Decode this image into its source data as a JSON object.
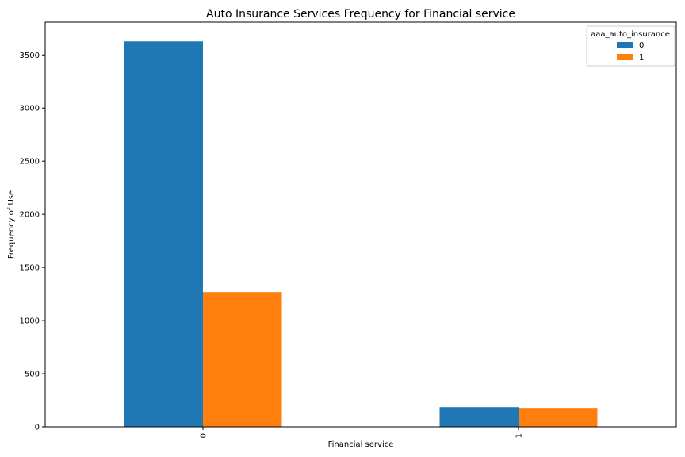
{
  "chart_data": {
    "type": "bar",
    "title": "Auto Insurance Services Frequency for Financial service",
    "xlabel": "Financial service",
    "ylabel": "Frequency of Use",
    "categories": [
      "0",
      "1"
    ],
    "series": [
      {
        "name": "0",
        "values": [
          3627,
          185
        ],
        "color": "#1f77b4"
      },
      {
        "name": "1",
        "values": [
          1268,
          178
        ],
        "color": "#ff7f0e"
      }
    ],
    "ylim": [
      0,
      3808
    ],
    "yticks": [
      0,
      500,
      1000,
      1500,
      2000,
      2500,
      3000,
      3500
    ],
    "legend": {
      "title": "aaa_auto_insurance",
      "placement": "top-right"
    },
    "grid": false
  }
}
